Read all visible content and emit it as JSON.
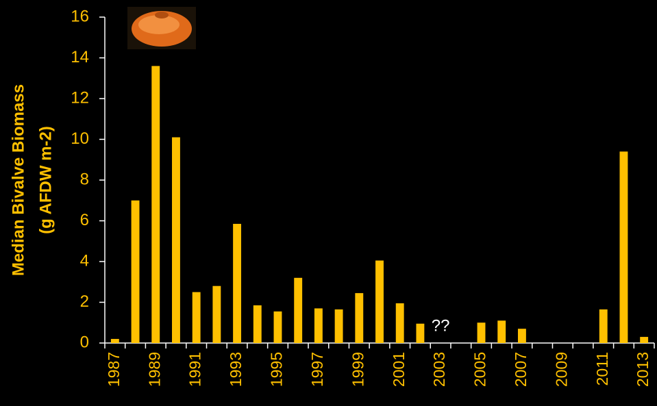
{
  "chart_data": {
    "type": "bar",
    "ylabel": [
      "Median Bivalve Biomass",
      "(g AFDW m-2)"
    ],
    "categories": [
      "1987",
      null,
      "1989",
      null,
      "1991",
      null,
      "1993",
      null,
      "1995",
      null,
      "1997",
      null,
      "1999",
      null,
      "2001",
      null,
      "2003",
      null,
      "2005",
      null,
      "2007",
      null,
      "2009",
      null,
      "2011",
      null,
      "2013"
    ],
    "values": [
      0.2,
      7.0,
      13.6,
      10.1,
      2.5,
      2.8,
      5.85,
      1.85,
      1.55,
      3.2,
      1.7,
      1.65,
      2.45,
      4.05,
      1.95,
      0.95,
      null,
      null,
      1.0,
      1.1,
      0.7,
      null,
      null,
      null,
      1.65,
      9.4,
      0.3
    ],
    "color": "#FFC000",
    "ylim": [
      0,
      16
    ],
    "yticks": [
      0,
      2,
      4,
      6,
      8,
      10,
      12,
      14,
      16
    ],
    "annotations": [
      {
        "text": "??",
        "x": "2003"
      }
    ]
  }
}
